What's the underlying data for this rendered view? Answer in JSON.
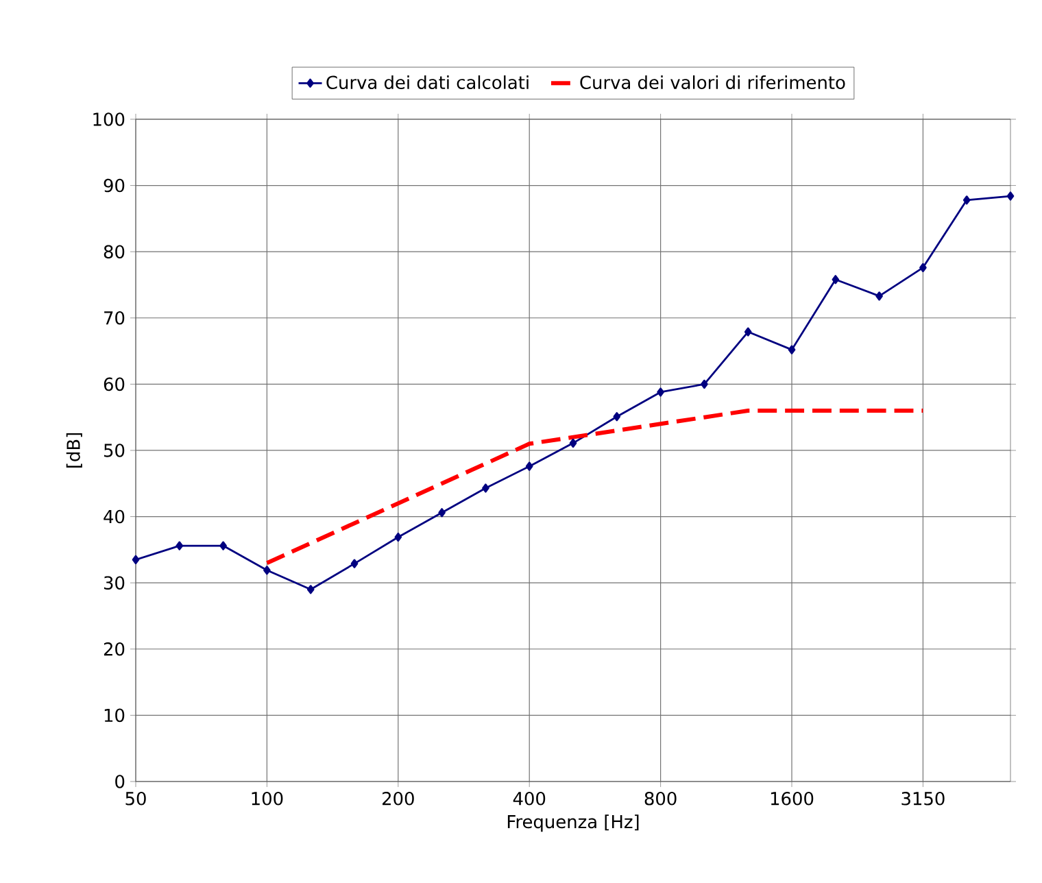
{
  "chart_data": {
    "type": "line",
    "xlabel": "Frequenza [Hz]",
    "ylabel": "[dB]",
    "categories": [
      "50",
      null,
      null,
      "100",
      null,
      null,
      "200",
      null,
      null,
      "400",
      null,
      null,
      "800",
      null,
      null,
      "1600",
      null,
      null,
      "3150",
      null,
      null
    ],
    "series": [
      {
        "name": "Curva dei dati calcolati",
        "color": "#000080",
        "marker": "diamond",
        "line_style": "solid",
        "values": [
          33.5,
          35.6,
          35.6,
          31.9,
          29.0,
          32.9,
          36.9,
          40.6,
          44.3,
          47.6,
          51.1,
          55.1,
          58.8,
          60.0,
          67.9,
          65.2,
          75.8,
          73.3,
          77.6,
          87.8,
          88.4
        ]
      },
      {
        "name": "Curva dei valori di riferimento",
        "color": "#ff0000",
        "marker": "none",
        "line_style": "dashed",
        "values": [
          null,
          null,
          null,
          33,
          36,
          39,
          42,
          45,
          48,
          51,
          52,
          53,
          54,
          55,
          56,
          56,
          56,
          56,
          56,
          null,
          null
        ]
      }
    ],
    "ylim": [
      0,
      100
    ],
    "yticks": [
      0,
      10,
      20,
      30,
      40,
      50,
      60,
      70,
      80,
      90,
      100
    ],
    "grid": true,
    "legend": "top"
  }
}
